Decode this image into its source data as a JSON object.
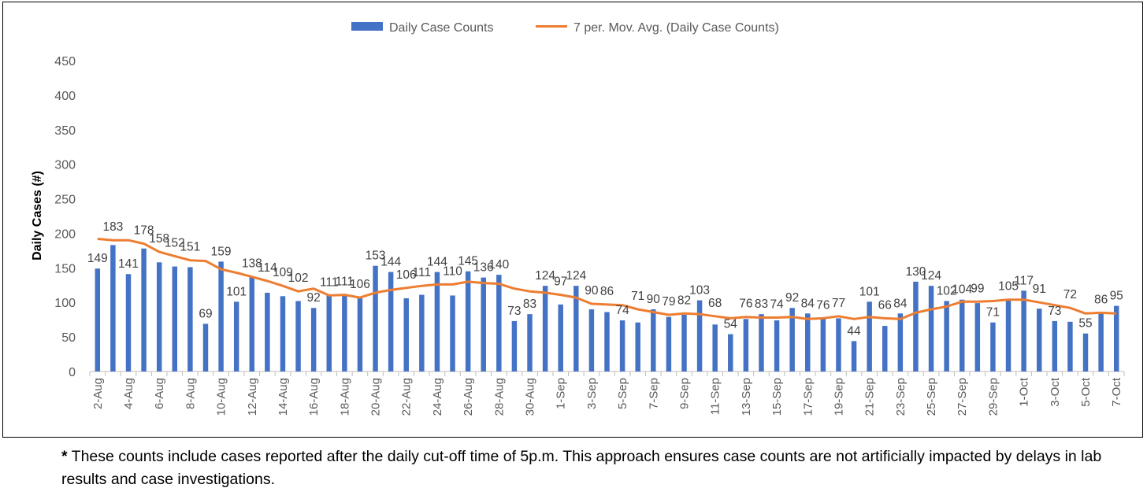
{
  "chart_data": {
    "type": "bar",
    "title": "",
    "xlabel": "",
    "ylabel": "Daily Cases (#)",
    "ylim": [
      0,
      450
    ],
    "yticks": [
      0,
      50,
      100,
      150,
      200,
      250,
      300,
      350,
      400,
      450
    ],
    "grid": false,
    "legend_position": "top",
    "categories": [
      "2-Aug",
      "3-Aug",
      "4-Aug",
      "5-Aug",
      "6-Aug",
      "7-Aug",
      "8-Aug",
      "9-Aug",
      "10-Aug",
      "11-Aug",
      "12-Aug",
      "13-Aug",
      "14-Aug",
      "15-Aug",
      "16-Aug",
      "17-Aug",
      "18-Aug",
      "19-Aug",
      "20-Aug",
      "21-Aug",
      "22-Aug",
      "23-Aug",
      "24-Aug",
      "25-Aug",
      "26-Aug",
      "27-Aug",
      "28-Aug",
      "29-Aug",
      "30-Aug",
      "31-Aug",
      "1-Sep",
      "2-Sep",
      "3-Sep",
      "4-Sep",
      "5-Sep",
      "6-Sep",
      "7-Sep",
      "8-Sep",
      "9-Sep",
      "10-Sep",
      "11-Sep",
      "12-Sep",
      "13-Sep",
      "14-Sep",
      "15-Sep",
      "16-Sep",
      "17-Sep",
      "18-Sep",
      "19-Sep",
      "20-Sep",
      "21-Sep",
      "22-Sep",
      "23-Sep",
      "24-Sep",
      "25-Sep",
      "26-Sep",
      "27-Sep",
      "28-Sep",
      "29-Sep",
      "30-Sep",
      "1-Oct",
      "2-Oct",
      "3-Oct",
      "4-Oct",
      "5-Oct",
      "6-Oct",
      "7-Oct"
    ],
    "x_tick_labels": [
      "2-Aug",
      "4-Aug",
      "6-Aug",
      "8-Aug",
      "10-Aug",
      "12-Aug",
      "14-Aug",
      "16-Aug",
      "18-Aug",
      "20-Aug",
      "22-Aug",
      "24-Aug",
      "26-Aug",
      "28-Aug",
      "30-Aug",
      "1-Sep",
      "3-Sep",
      "5-Sep",
      "7-Sep",
      "9-Sep",
      "11-Sep",
      "13-Sep",
      "15-Sep",
      "17-Sep",
      "19-Sep",
      "21-Sep",
      "23-Sep",
      "25-Sep",
      "27-Sep",
      "29-Sep",
      "1-Oct",
      "3-Oct",
      "5-Oct",
      "7-Oct"
    ],
    "series": [
      {
        "name": "Daily Case Counts",
        "type": "bar",
        "color": "#4472C4",
        "values": [
          149,
          183,
          141,
          178,
          158,
          152,
          151,
          69,
          159,
          101,
          138,
          114,
          109,
          102,
          92,
          111,
          111,
          106,
          153,
          144,
          106,
          111,
          144,
          110,
          145,
          136,
          140,
          73,
          83,
          124,
          97,
          124,
          90,
          86,
          74,
          71,
          90,
          79,
          82,
          103,
          68,
          54,
          76,
          83,
          74,
          92,
          84,
          76,
          77,
          44,
          101,
          66,
          84,
          130,
          124,
          102,
          104,
          99,
          71,
          105,
          117,
          91,
          73,
          72,
          55,
          86,
          95
        ]
      },
      {
        "name": "7 per. Mov. Avg. (Daily Case Counts)",
        "type": "line",
        "color": "#ED7D31",
        "values": [
          192,
          190,
          190,
          185,
          173,
          167,
          161,
          160,
          148,
          143,
          137,
          131,
          124,
          116,
          120,
          110,
          111,
          107,
          114,
          118,
          121,
          124,
          126,
          126,
          130,
          128,
          127,
          120,
          116,
          114,
          111,
          107,
          98,
          97,
          96,
          90,
          86,
          82,
          84,
          83,
          80,
          77,
          79,
          78,
          78,
          79,
          76,
          77,
          80,
          76,
          79,
          77,
          76,
          85,
          90,
          94,
          101,
          101,
          102,
          104,
          104,
          100,
          96,
          92,
          84,
          85,
          84
        ]
      }
    ],
    "data_labels": [
      {
        "index": 0,
        "text": "149"
      },
      {
        "index": 1,
        "text": "183"
      },
      {
        "index": 2,
        "text": "141"
      },
      {
        "index": 3,
        "text": "178"
      },
      {
        "index": 4,
        "text": "158"
      },
      {
        "index": 5,
        "text": "152"
      },
      {
        "index": 6,
        "text": "151"
      },
      {
        "index": 7,
        "text": "69"
      },
      {
        "index": 8,
        "text": "159"
      },
      {
        "index": 9,
        "text": "101"
      },
      {
        "index": 10,
        "text": "138"
      },
      {
        "index": 11,
        "text": "114"
      },
      {
        "index": 12,
        "text": "109"
      },
      {
        "index": 13,
        "text": "102"
      },
      {
        "index": 14,
        "text": "92"
      },
      {
        "index": 15,
        "text": "111"
      },
      {
        "index": 16,
        "text": "111"
      },
      {
        "index": 17,
        "text": "106"
      },
      {
        "index": 18,
        "text": "153"
      },
      {
        "index": 19,
        "text": "144"
      },
      {
        "index": 20,
        "text": "106"
      },
      {
        "index": 21,
        "text": "111"
      },
      {
        "index": 22,
        "text": "144"
      },
      {
        "index": 23,
        "text": "110"
      },
      {
        "index": 24,
        "text": "145"
      },
      {
        "index": 25,
        "text": "136"
      },
      {
        "index": 26,
        "text": "140"
      },
      {
        "index": 27,
        "text": "73"
      },
      {
        "index": 28,
        "text": "83"
      },
      {
        "index": 29,
        "text": "124"
      },
      {
        "index": 30,
        "text": "97"
      },
      {
        "index": 31,
        "text": "124"
      },
      {
        "index": 32,
        "text": "90"
      },
      {
        "index": 33,
        "text": "86"
      },
      {
        "index": 34,
        "text": "74"
      },
      {
        "index": 35,
        "text": "71"
      },
      {
        "index": 36,
        "text": "90"
      },
      {
        "index": 37,
        "text": "79"
      },
      {
        "index": 38,
        "text": "82"
      },
      {
        "index": 39,
        "text": "103"
      },
      {
        "index": 40,
        "text": "68"
      },
      {
        "index": 41,
        "text": "54"
      },
      {
        "index": 42,
        "text": "76"
      },
      {
        "index": 43,
        "text": "83"
      },
      {
        "index": 44,
        "text": "74"
      },
      {
        "index": 45,
        "text": "92"
      },
      {
        "index": 46,
        "text": "84"
      },
      {
        "index": 47,
        "text": "76"
      },
      {
        "index": 48,
        "text": "77"
      },
      {
        "index": 49,
        "text": "44"
      },
      {
        "index": 50,
        "text": "101"
      },
      {
        "index": 51,
        "text": "66"
      },
      {
        "index": 52,
        "text": "84"
      },
      {
        "index": 53,
        "text": "130"
      },
      {
        "index": 54,
        "text": "124"
      },
      {
        "index": 55,
        "text": "102"
      },
      {
        "index": 56,
        "text": "104"
      },
      {
        "index": 57,
        "text": "99"
      },
      {
        "index": 58,
        "text": "71"
      },
      {
        "index": 59,
        "text": "105"
      },
      {
        "index": 60,
        "text": "117"
      },
      {
        "index": 61,
        "text": "91"
      },
      {
        "index": 62,
        "text": "73"
      },
      {
        "index": 63,
        "text": "72"
      },
      {
        "index": 64,
        "text": "55"
      },
      {
        "index": 65,
        "text": "86"
      },
      {
        "index": 66,
        "text": "95"
      }
    ]
  },
  "footnote": {
    "star": "*",
    "text": " These counts include cases reported after the daily cut-off time of 5p.m.  This approach ensures case counts are not artificially impacted by delays in lab results and case investigations."
  }
}
